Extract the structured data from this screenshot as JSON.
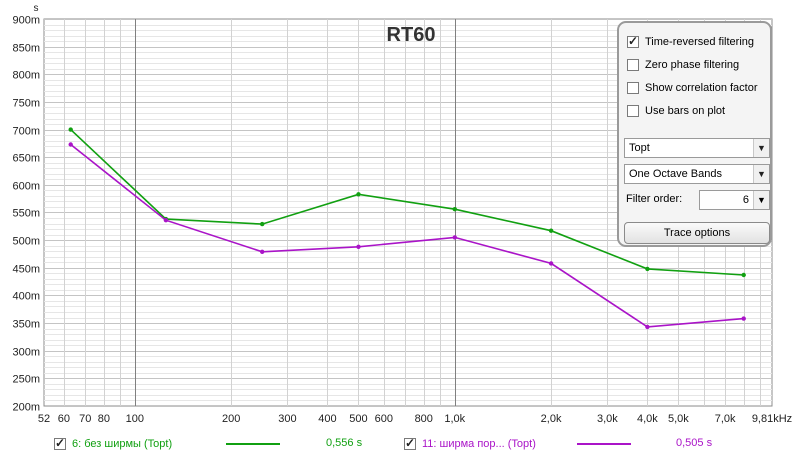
{
  "chart_data": {
    "type": "line",
    "title": "RT60",
    "ylabel": "s",
    "xlabel": "",
    "x_scale": "log",
    "xlim": [
      52,
      9810
    ],
    "ylim": [
      0.2,
      0.9
    ],
    "grid": true,
    "x_ticks": [
      {
        "v": 52,
        "label": "52"
      },
      {
        "v": 60,
        "label": "60"
      },
      {
        "v": 70,
        "label": "70"
      },
      {
        "v": 80,
        "label": "80"
      },
      {
        "v": 100,
        "label": "100"
      },
      {
        "v": 200,
        "label": "200"
      },
      {
        "v": 300,
        "label": "300"
      },
      {
        "v": 400,
        "label": "400"
      },
      {
        "v": 500,
        "label": "500"
      },
      {
        "v": 600,
        "label": "600"
      },
      {
        "v": 800,
        "label": "800"
      },
      {
        "v": 1000,
        "label": "1,0k"
      },
      {
        "v": 2000,
        "label": "2,0k"
      },
      {
        "v": 3000,
        "label": "3,0k"
      },
      {
        "v": 4000,
        "label": "4,0k"
      },
      {
        "v": 5000,
        "label": "5,0k"
      },
      {
        "v": 7000,
        "label": "7,0k"
      },
      {
        "v": 9810,
        "label": "9,81kHz"
      }
    ],
    "y_ticks": [
      {
        "v": 0.2,
        "label": "200m"
      },
      {
        "v": 0.25,
        "label": "250m"
      },
      {
        "v": 0.3,
        "label": "300m"
      },
      {
        "v": 0.35,
        "label": "350m"
      },
      {
        "v": 0.4,
        "label": "400m"
      },
      {
        "v": 0.45,
        "label": "450m"
      },
      {
        "v": 0.5,
        "label": "500m"
      },
      {
        "v": 0.55,
        "label": "550m"
      },
      {
        "v": 0.6,
        "label": "600m"
      },
      {
        "v": 0.65,
        "label": "650m"
      },
      {
        "v": 0.7,
        "label": "700m"
      },
      {
        "v": 0.75,
        "label": "750m"
      },
      {
        "v": 0.8,
        "label": "800m"
      },
      {
        "v": 0.85,
        "label": "850m"
      },
      {
        "v": 0.9,
        "label": "900m"
      }
    ],
    "series": [
      {
        "name": "6: без ширмы (Topt)",
        "color": "#11a011",
        "points": [
          [
            63,
            0.7
          ],
          [
            125,
            0.538
          ],
          [
            250,
            0.529
          ],
          [
            500,
            0.583
          ],
          [
            1000,
            0.556
          ],
          [
            2000,
            0.517
          ],
          [
            4000,
            0.448
          ],
          [
            8000,
            0.437
          ]
        ]
      },
      {
        "name": "11: ширма пор... (Topt)",
        "color": "#aa14c8",
        "points": [
          [
            63,
            0.673
          ],
          [
            125,
            0.536
          ],
          [
            250,
            0.479
          ],
          [
            500,
            0.488
          ],
          [
            1000,
            0.505
          ],
          [
            2000,
            0.458
          ],
          [
            4000,
            0.343
          ],
          [
            8000,
            0.358
          ]
        ]
      }
    ]
  },
  "panel": {
    "checkboxes": [
      {
        "label": "Time-reversed filtering",
        "checked": true
      },
      {
        "label": "Zero phase filtering",
        "checked": false
      },
      {
        "label": "Show correlation factor",
        "checked": false
      },
      {
        "label": "Use bars on plot",
        "checked": false
      }
    ],
    "metric_select": "Topt",
    "bands_select": "One Octave Bands",
    "filter_order_label": "Filter order:",
    "filter_order_value": "6",
    "trace_options_label": "Trace options"
  },
  "legend": {
    "items": [
      {
        "label": "6: без ширмы (Topt)",
        "value": "0,556 s",
        "color": "#11a011",
        "checked": true
      },
      {
        "label": "11: ширма пор... (Topt)",
        "value": "0,505 s",
        "color": "#aa14c8",
        "checked": true
      }
    ]
  }
}
